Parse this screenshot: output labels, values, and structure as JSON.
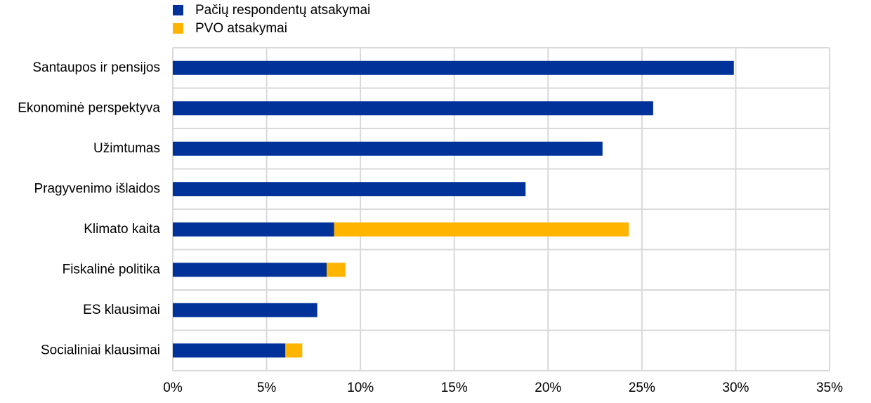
{
  "chart_data": {
    "type": "stacked-bar-horizontal",
    "categories": [
      "Santaupos ir pensijos",
      "Ekonominė perspektyva",
      "Užimtumas",
      "Pragyvenimo išlaidos",
      "Klimato kaita",
      "Fiskalinė politika",
      "ES klausimai",
      "Socialiniai klausimai"
    ],
    "series": [
      {
        "name": "Pačių respondentų  atsakymai",
        "color": "#003299",
        "values": [
          29.9,
          25.6,
          22.9,
          18.8,
          8.6,
          8.2,
          7.7,
          6.0
        ]
      },
      {
        "name": "PVO atsakymai",
        "color": "#ffb400",
        "values": [
          0,
          0,
          0,
          0,
          15.7,
          1.0,
          0,
          0.9
        ]
      }
    ],
    "xlim": [
      0,
      35
    ],
    "xticks": [
      {
        "value": 0,
        "label": "0%"
      },
      {
        "value": 5,
        "label": "5%"
      },
      {
        "value": 10,
        "label": "10%"
      },
      {
        "value": 15,
        "label": "15%"
      },
      {
        "value": 20,
        "label": "20%"
      },
      {
        "value": 25,
        "label": "25%"
      },
      {
        "value": 30,
        "label": "30%"
      },
      {
        "value": 35,
        "label": "35%"
      }
    ],
    "grid": true,
    "legend": "top"
  }
}
